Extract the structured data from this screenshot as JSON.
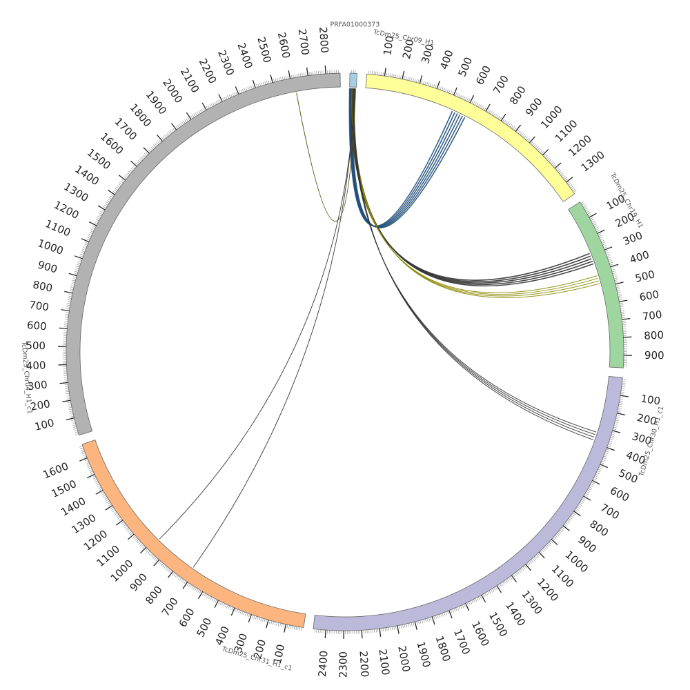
{
  "chart_data": {
    "type": "circos",
    "segments": [
      {
        "name": "PRFA01000373",
        "length": 40,
        "color": "#a6cee3",
        "label_interval": 0,
        "show_name": true
      },
      {
        "name": "TcDm25_Chr09_H1",
        "length": 1380,
        "color": "#ffff99",
        "label_interval": 100,
        "show_name": true
      },
      {
        "name": "TcDm25_Chr19_H1",
        "length": 970,
        "color": "#9fd69f",
        "label_interval": 100,
        "show_name": true
      },
      {
        "name": "TcDm25_Chr30_H1_c1",
        "length": 2470,
        "color": "#bcbadb",
        "label_interval": 100,
        "show_name": true
      },
      {
        "name": "TcDm25_Chr31_H1_c1",
        "length": 1680,
        "color": "#fdb57f",
        "label_interval": 100,
        "show_name": true
      },
      {
        "name": "TcDm25_Chr04_H1_c1",
        "length": 2880,
        "color": "#b2b2b2",
        "label_interval": 100,
        "show_name": true
      }
    ],
    "links": [
      {
        "source": "PRFA01000373",
        "source_pos": 10,
        "target": "TcDm25_Chr09_H1",
        "target_pos": 570,
        "color": "#1f4e79",
        "count": 6
      },
      {
        "source": "PRFA01000373",
        "source_pos": 18,
        "target": "TcDm25_Chr19_H1",
        "target_pos": 320,
        "color": "#333333",
        "count": 5
      },
      {
        "source": "PRFA01000373",
        "source_pos": 20,
        "target": "TcDm25_Chr19_H1",
        "target_pos": 450,
        "color": "#8a8a00",
        "count": 4
      },
      {
        "source": "PRFA01000373",
        "source_pos": 24,
        "target": "TcDm25_Chr30_H1_c1",
        "target_pos": 360,
        "color": "#333333",
        "count": 4
      },
      {
        "source": "PRFA01000373",
        "source_pos": 30,
        "target": "TcDm25_Chr31_H1_c1",
        "target_pos": 720,
        "color": "#333333",
        "count": 1
      },
      {
        "source": "PRFA01000373",
        "source_pos": 32,
        "target": "TcDm25_Chr31_H1_c1",
        "target_pos": 980,
        "color": "#333333",
        "count": 1
      },
      {
        "source": "PRFA01000373",
        "source_pos": 36,
        "target": "TcDm25_Chr04_H1_c1",
        "target_pos": 2620,
        "color": "#554400",
        "count": 1
      }
    ],
    "gap_degrees": 2,
    "start_angle_degrees": 90,
    "direction": "clockwise",
    "title": "",
    "legend": "none"
  }
}
